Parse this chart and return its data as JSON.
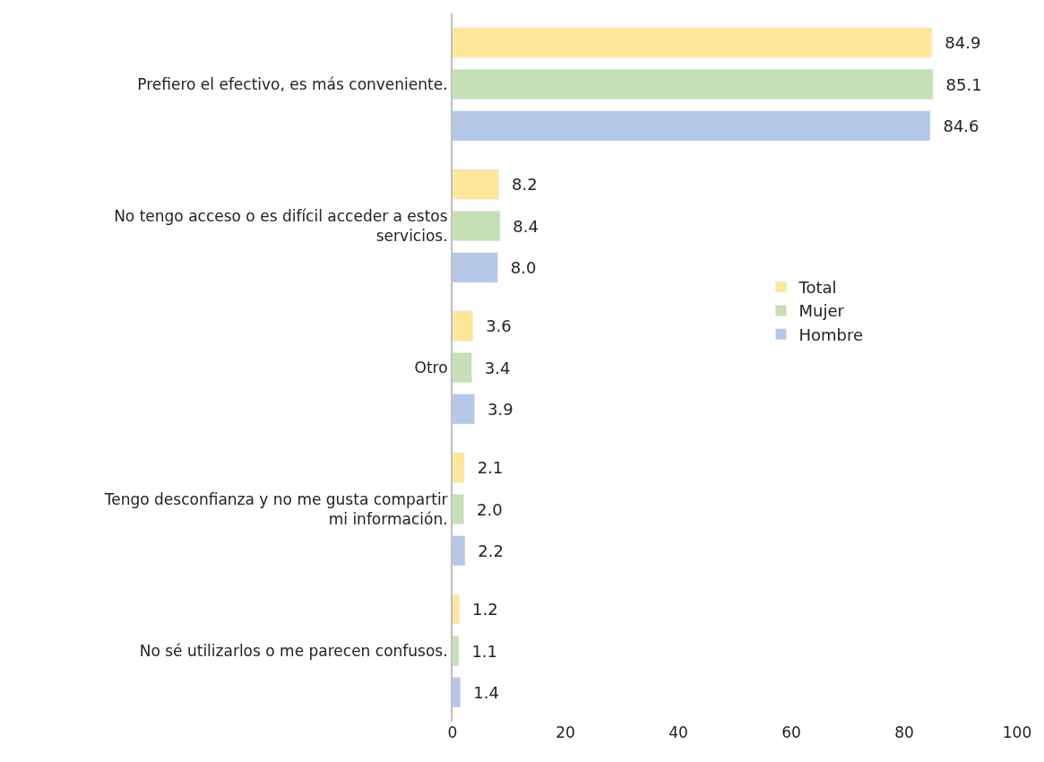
{
  "chart_data": {
    "type": "bar",
    "orientation": "horizontal",
    "categories": [
      "Prefiero el efectivo, es más conveniente.",
      "No tengo acceso o es difícil acceder a estos servicios.",
      "Otro",
      "Tengo desconfianza y no me gusta compartir mi información.",
      "No sé utilizarlos o me parecen confusos."
    ],
    "series": [
      {
        "name": "Total",
        "color": "#ffe699",
        "values": [
          84.9,
          8.2,
          3.6,
          2.1,
          1.2
        ],
        "value_labels": [
          "84.9",
          "8.2",
          "3.6",
          "2.1",
          "1.2"
        ]
      },
      {
        "name": "Mujer",
        "color": "#c5e0b4",
        "values": [
          85.1,
          8.4,
          3.4,
          2.0,
          1.1
        ],
        "value_labels": [
          "85.1",
          "8.4",
          "3.4",
          "2.0",
          "1.1"
        ]
      },
      {
        "name": "Hombre",
        "color": "#b4c7e7",
        "values": [
          84.6,
          8.0,
          3.9,
          2.2,
          1.4
        ],
        "value_labels": [
          "84.6",
          "8.0",
          "3.9",
          "2.2",
          "1.4"
        ]
      }
    ],
    "xlim": [
      0,
      100
    ],
    "xticks": [
      0,
      20,
      40,
      60,
      80,
      100
    ],
    "legend": "right"
  }
}
